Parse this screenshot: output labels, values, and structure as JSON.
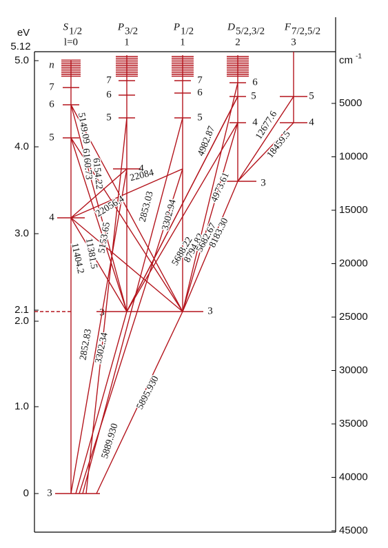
{
  "left_axis": {
    "unit": "eV",
    "top_label": "5.12",
    "ticks": [
      "5.0",
      "4.0",
      "3.0",
      "2.1",
      "2.0",
      "1.0",
      "0"
    ]
  },
  "right_axis": {
    "unit": "cm",
    "unit_exponent": "-1",
    "ticks": [
      "5000",
      "10000",
      "15000",
      "20000",
      "25000",
      "30000",
      "35000",
      "40000",
      "45000"
    ]
  },
  "columns": [
    {
      "term": "S",
      "subscript": "1/2",
      "l": "l=0"
    },
    {
      "term": "P",
      "subscript": "3/2",
      "l": "1"
    },
    {
      "term": "P",
      "subscript": "1/2",
      "l": "1"
    },
    {
      "term": "D",
      "subscript": "5/2,3/2",
      "l": "2"
    },
    {
      "term": "F",
      "subscript": "7/2,5/2",
      "l": "3"
    }
  ],
  "levels": [
    {
      "column": "S",
      "labels": [
        "n",
        "7",
        "6",
        "5",
        "4",
        "3"
      ]
    },
    {
      "column": "P3/2",
      "labels": [
        "7",
        "6",
        "5",
        "4",
        "3"
      ]
    },
    {
      "column": "P1/2",
      "labels": [
        "7",
        "6",
        "5",
        "3"
      ]
    },
    {
      "column": "D",
      "labels": [
        "6",
        "5",
        "4",
        "3"
      ]
    },
    {
      "column": "F",
      "labels": [
        "5",
        "4"
      ]
    }
  ],
  "transitions": [
    "5889.930",
    "5895.930",
    "2852.83",
    "3302.34",
    "2853.03",
    "3302.94",
    "11404.2",
    "11381.5",
    "5153.65",
    "22084",
    "22056.4",
    "6160.73",
    "6154.22",
    "5149.09",
    "5688.22",
    "8794.82",
    "5682.67",
    "8183.30",
    "4982.87",
    "4973.61",
    "12677.6",
    "18459.5"
  ]
}
